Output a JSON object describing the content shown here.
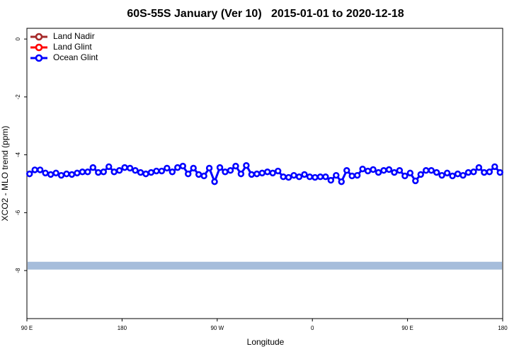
{
  "chart_data": {
    "type": "line",
    "title": "60S-55S January (Ver 10)   2015-01-01 to 2020-12-18",
    "xlabel": "Longitude",
    "ylabel": "XCO2 - MLO trend (ppm)",
    "xlim": [
      90,
      540
    ],
    "ylim": [
      -9.66,
      0.37
    ],
    "xticks": [
      {
        "value": 90,
        "label": "90 E"
      },
      180,
      {
        "value": 270,
        "label": "90 W"
      },
      {
        "value": 360,
        "label": "0"
      },
      {
        "value": 450,
        "label": "90 E"
      },
      {
        "value": 540,
        "label": "180"
      }
    ],
    "yticks": [
      0,
      -2,
      -4,
      -6,
      -8
    ],
    "legend": "upper left",
    "x": [
      92.5,
      97.5,
      102.5,
      107.5,
      112.5,
      117.5,
      122.5,
      127.5,
      132.5,
      137.5,
      142.5,
      147.5,
      152.5,
      157.5,
      162.5,
      167.5,
      172.5,
      177.5,
      182.5,
      187.5,
      192.5,
      197.5,
      202.5,
      207.5,
      212.5,
      217.5,
      222.5,
      227.5,
      232.5,
      237.5,
      242.5,
      247.5,
      252.5,
      257.5,
      262.5,
      267.5,
      272.5,
      277.5,
      282.5,
      287.5,
      292.5,
      297.5,
      302.5,
      307.5,
      312.5,
      317.5,
      322.5,
      327.5,
      332.5,
      337.5,
      342.5,
      347.5,
      352.5,
      357.5,
      362.5,
      367.5,
      372.5,
      377.5,
      382.5,
      387.5,
      392.5,
      397.5,
      402.5,
      407.5,
      412.5,
      417.5,
      422.5,
      427.5,
      432.5,
      437.5,
      442.5,
      447.5,
      452.5,
      457.5,
      462.5,
      467.5,
      472.5,
      477.5,
      482.5,
      487.5,
      492.5,
      497.5,
      502.5,
      507.5,
      512.5,
      517.5,
      522.5,
      527.5,
      532.5,
      537.5
    ],
    "series": [
      {
        "name": "Land Nadir",
        "color": "#a52a2a",
        "values": [
          null,
          null,
          null,
          null,
          null,
          null,
          null,
          null,
          null,
          null,
          null,
          null,
          null,
          null,
          null,
          null,
          null,
          null,
          null,
          null,
          null,
          null,
          null,
          null,
          null,
          null,
          null,
          null,
          null,
          null,
          null,
          null,
          null,
          null,
          null,
          null,
          null,
          null,
          null,
          null,
          null,
          null,
          null,
          null,
          null,
          null,
          null,
          null,
          null,
          null,
          null,
          null,
          null,
          null,
          null,
          null,
          null,
          null,
          null,
          null,
          null,
          null,
          null,
          null,
          null,
          null,
          null,
          null,
          null,
          null,
          null,
          null,
          null,
          null,
          null,
          null,
          null,
          null,
          null,
          null,
          null,
          null,
          null,
          null,
          null,
          null,
          null,
          null,
          null,
          null
        ]
      },
      {
        "name": "Land Glint",
        "color": "#ff0000",
        "values": [
          null,
          null,
          null,
          null,
          null,
          null,
          null,
          null,
          null,
          null,
          null,
          null,
          null,
          null,
          null,
          null,
          null,
          null,
          null,
          null,
          null,
          null,
          null,
          null,
          null,
          null,
          null,
          null,
          null,
          null,
          null,
          null,
          null,
          null,
          null,
          null,
          null,
          null,
          null,
          null,
          null,
          null,
          null,
          null,
          null,
          null,
          null,
          null,
          null,
          null,
          null,
          null,
          null,
          null,
          null,
          null,
          null,
          null,
          null,
          null,
          null,
          null,
          null,
          null,
          null,
          null,
          null,
          null,
          null,
          null,
          null,
          null,
          null,
          null,
          null,
          null,
          null,
          null,
          null,
          null,
          null,
          null,
          null,
          null,
          null,
          null,
          null,
          null,
          null,
          null
        ]
      },
      {
        "name": "Ocean Glint",
        "color": "#0000ff",
        "values": [
          -4.66,
          -4.52,
          -4.52,
          -4.63,
          -4.68,
          -4.63,
          -4.71,
          -4.66,
          -4.68,
          -4.63,
          -4.59,
          -4.59,
          -4.44,
          -4.61,
          -4.59,
          -4.41,
          -4.59,
          -4.54,
          -4.44,
          -4.46,
          -4.54,
          -4.61,
          -4.66,
          -4.61,
          -4.56,
          -4.56,
          -4.46,
          -4.59,
          -4.44,
          -4.39,
          -4.66,
          -4.46,
          -4.68,
          -4.73,
          -4.46,
          -4.93,
          -4.44,
          -4.59,
          -4.54,
          -4.39,
          -4.66,
          -4.37,
          -4.68,
          -4.66,
          -4.63,
          -4.59,
          -4.63,
          -4.56,
          -4.76,
          -4.78,
          -4.71,
          -4.76,
          -4.68,
          -4.76,
          -4.78,
          -4.76,
          -4.76,
          -4.88,
          -4.71,
          -4.93,
          -4.54,
          -4.73,
          -4.71,
          -4.49,
          -4.56,
          -4.51,
          -4.61,
          -4.54,
          -4.51,
          -4.61,
          -4.54,
          -4.73,
          -4.63,
          -4.9,
          -4.68,
          -4.54,
          -4.54,
          -4.61,
          -4.71,
          -4.63,
          -4.73,
          -4.66,
          -4.71,
          -4.61,
          -4.59,
          -4.44,
          -4.61,
          -4.59,
          -4.41,
          -4.61
        ]
      }
    ],
    "band": {
      "value": -7.83,
      "color": "#a6bddb"
    }
  }
}
